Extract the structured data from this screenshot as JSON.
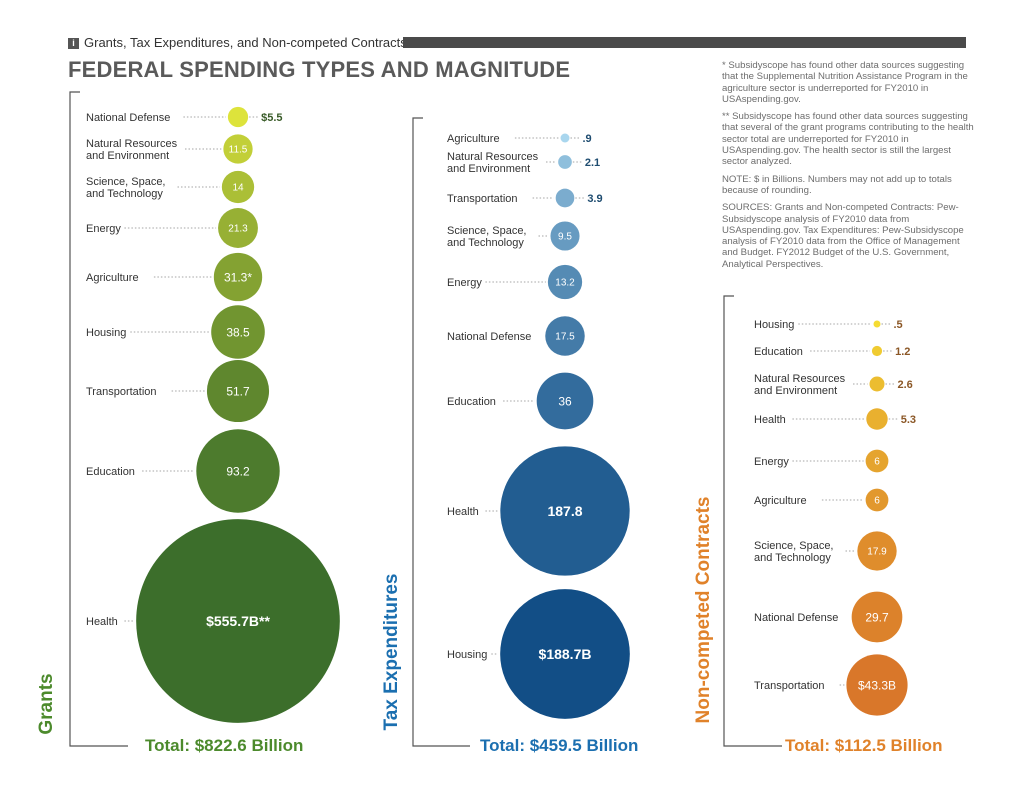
{
  "header": {
    "icon_letter": "i",
    "kicker": "Grants, Tax Expenditures, and Non-competed Contracts",
    "title": "FEDERAL SPENDING TYPES AND MAGNITUDE"
  },
  "notes": [
    "* Subsidyscope has found other data sources suggesting that the Supplemental Nutrition Assistance Program in the agriculture sector is underreported for FY2010 in USAspending.gov.",
    "** Subsidyscope has found other data sources suggesting that several of the grant programs contributing to the health sector total are underreported for FY2010 in USAspending.gov. The health sector is still the largest sector analyzed.",
    "NOTE: $ in Billions. Numbers may not add up to totals because of rounding.",
    "SOURCES: Grants and Non-competed Contracts: Pew-Subsidyscope analysis of FY2010 data from USAspending.gov. Tax Expenditures: Pew-Subsidyscope analysis of FY2010 data from the Office of Management and Budget. FY2012 Budget of the U.S. Government, Analytical Perspectives."
  ],
  "chart_data": [
    {
      "type": "bubble",
      "title": "Grants",
      "total_label": "Total: $822.6 Billion",
      "color": "#4c8a2c",
      "categories": [
        "National Defense",
        "Natural Resources and Environment",
        "Science, Space, and Technology",
        "Energy",
        "Agriculture",
        "Housing",
        "Transportation",
        "Education",
        "Health"
      ],
      "values": [
        5.5,
        11.5,
        14,
        21.3,
        31.3,
        38.5,
        51.7,
        93.2,
        555.7
      ],
      "value_labels": [
        "$5.5",
        "11.5",
        "14",
        "21.3",
        "31.3*",
        "38.5",
        "51.7",
        "93.2",
        "$555.7B**"
      ]
    },
    {
      "type": "bubble",
      "title": "Tax Expenditures",
      "total_label": "Total: $459.5 Billion",
      "color": "#1b6fb0",
      "categories": [
        "Agriculture",
        "Natural Resources and Environment",
        "Transportation",
        "Science, Space, and Technology",
        "Energy",
        "National Defense",
        "Education",
        "Health",
        "Housing"
      ],
      "values": [
        0.9,
        2.1,
        3.9,
        9.5,
        13.2,
        17.5,
        36,
        187.8,
        188.7
      ],
      "value_labels": [
        ".9",
        "2.1",
        "3.9",
        "9.5",
        "13.2",
        "17.5",
        "36",
        "187.8",
        "$188.7B"
      ]
    },
    {
      "type": "bubble",
      "title": "Non-competed Contracts",
      "total_label": "Total: $112.5 Billion",
      "color": "#e0822a",
      "categories": [
        "Housing",
        "Education",
        "Natural Resources and Environment",
        "Health",
        "Energy",
        "Agriculture",
        "Science, Space, and Technology",
        "National Defense",
        "Transportation"
      ],
      "values": [
        0.5,
        1.2,
        2.6,
        5.3,
        6,
        6,
        17.9,
        29.7,
        43.3
      ],
      "value_labels": [
        ".5",
        "1.2",
        "2.6",
        "5.3",
        "6",
        "6",
        "17.9",
        "29.7",
        "$43.3B"
      ]
    }
  ]
}
